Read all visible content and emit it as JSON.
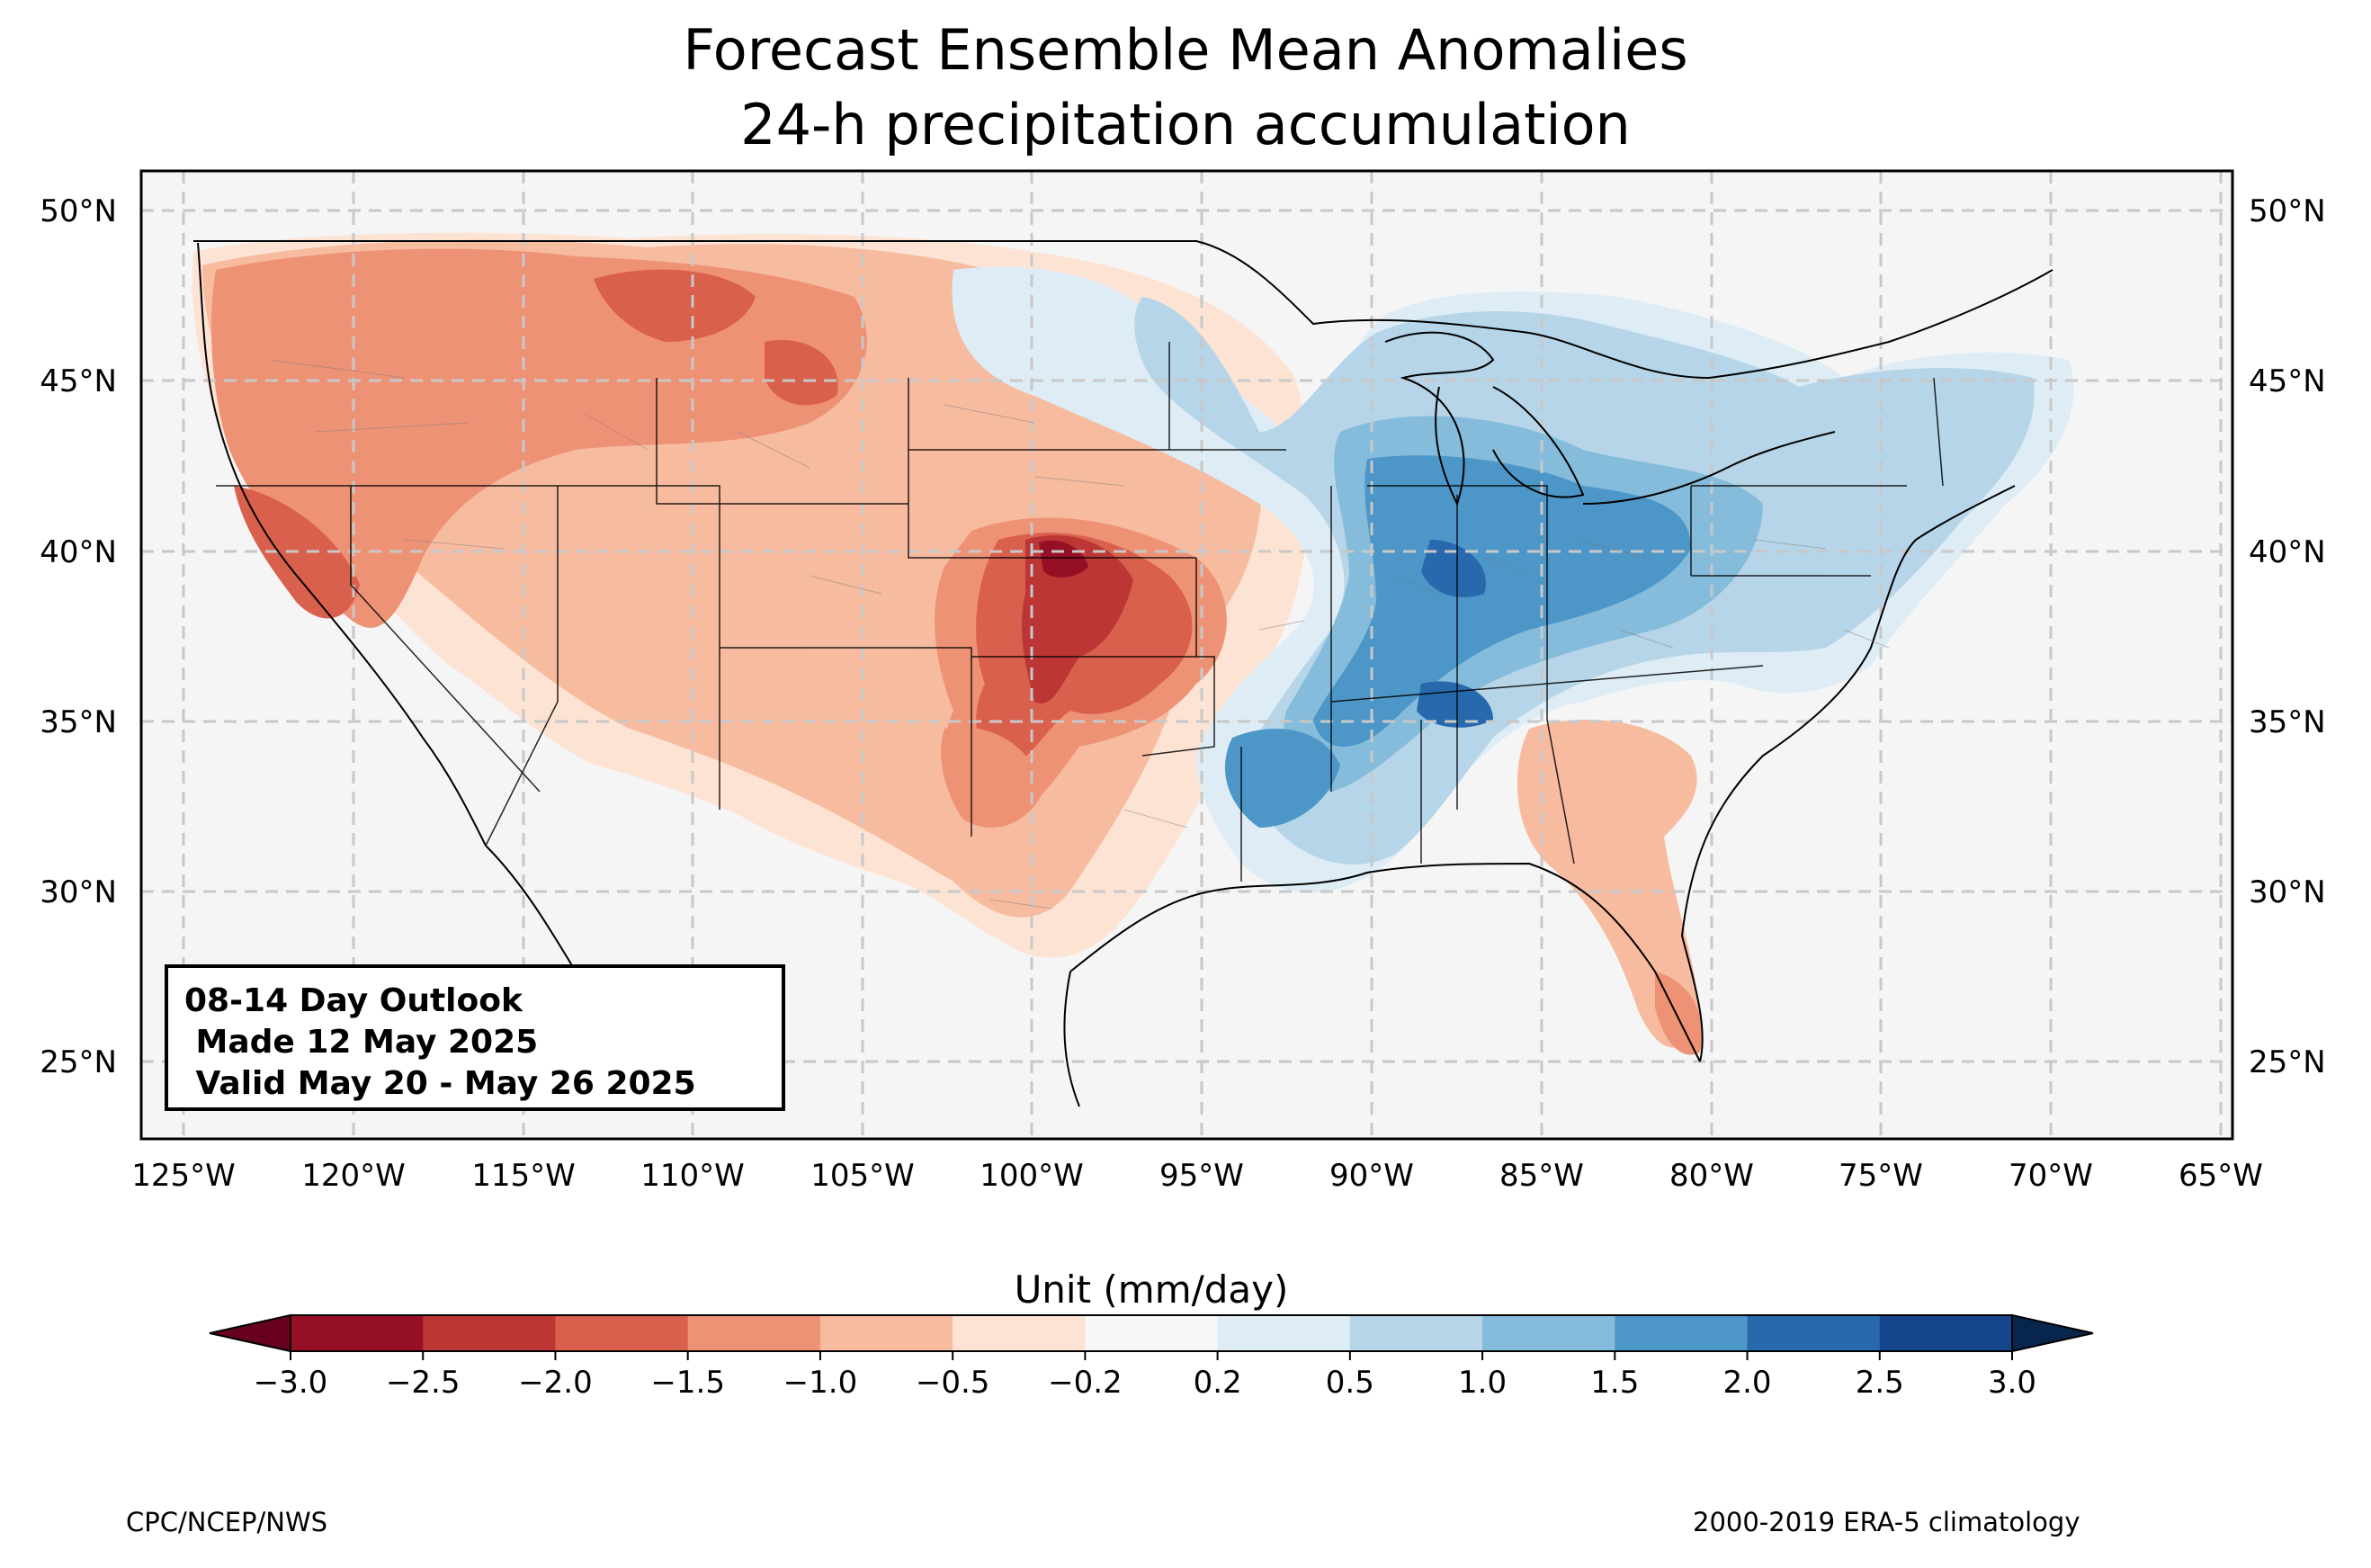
{
  "title_line1": "Forecast Ensemble Mean Anomalies",
  "title_line2": "24-h precipitation accumulation",
  "outlook": {
    "line1": "08-14 Day Outlook",
    "line2": " Made 12 May 2025",
    "line3": " Valid May 20 - May 26 2025"
  },
  "lat_labels": [
    "50°N",
    "45°N",
    "40°N",
    "35°N",
    "30°N",
    "25°N"
  ],
  "lon_labels": [
    "125°W",
    "120°W",
    "115°W",
    "110°W",
    "105°W",
    "100°W",
    "95°W",
    "90°W",
    "85°W",
    "80°W",
    "75°W",
    "70°W",
    "65°W"
  ],
  "colorbar": {
    "label": "Unit (mm/day)",
    "ticks": [
      "−3.0",
      "−2.5",
      "−2.0",
      "−1.5",
      "−1.0",
      "−0.5",
      "−0.2",
      "0.2",
      "0.5",
      "1.0",
      "1.5",
      "2.0",
      "2.5",
      "3.0"
    ],
    "colors": [
      "#950f25",
      "#bd3636",
      "#d9604d",
      "#ee9276",
      "#f7bba0",
      "#fde3d3",
      "#f7f7f7",
      "#deecf5",
      "#b6d5e9",
      "#85bcdb",
      "#4c97c7",
      "#2868ad",
      "#15468c"
    ],
    "under_color": "#67001f",
    "over_color": "#08264d"
  },
  "footer_left": "CPC/NCEP/NWS",
  "footer_right": "2000-2019 ERA-5 climatology",
  "colors": {
    "land_background": "#f5f5f5",
    "grid": "#c8c8c8"
  }
}
